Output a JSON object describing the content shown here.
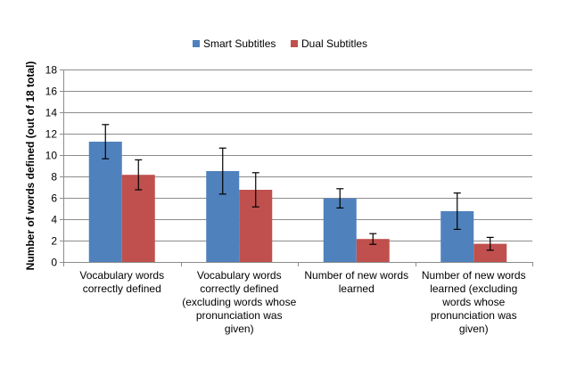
{
  "chart_data": {
    "type": "bar",
    "title": "",
    "xlabel": "",
    "ylabel": "Number of words defined (out of 18 total)",
    "ylim": [
      0,
      18
    ],
    "yticks": [
      0,
      2,
      4,
      6,
      8,
      10,
      12,
      14,
      16,
      18
    ],
    "grid": true,
    "legend_position": "top",
    "categories": [
      [
        "Vocabulary words",
        "correctly defined"
      ],
      [
        "Vocabulary words",
        "correctly defined",
        "(excluding words whose",
        "pronunciation was",
        "given)"
      ],
      [
        "Number of new words",
        "learned"
      ],
      [
        "Number of new words",
        "learned (excluding",
        "words whose",
        "pronunciation was",
        "given)"
      ]
    ],
    "series": [
      {
        "name": "Smart Subtitles",
        "color": "#4F81BD",
        "values": [
          11.25,
          8.5,
          5.95,
          4.75
        ],
        "error": [
          1.6,
          2.15,
          0.9,
          1.7
        ]
      },
      {
        "name": "Dual Subtitles",
        "color": "#C0504D",
        "values": [
          8.15,
          6.75,
          2.15,
          1.7
        ],
        "error": [
          1.4,
          1.6,
          0.5,
          0.6
        ]
      }
    ]
  }
}
